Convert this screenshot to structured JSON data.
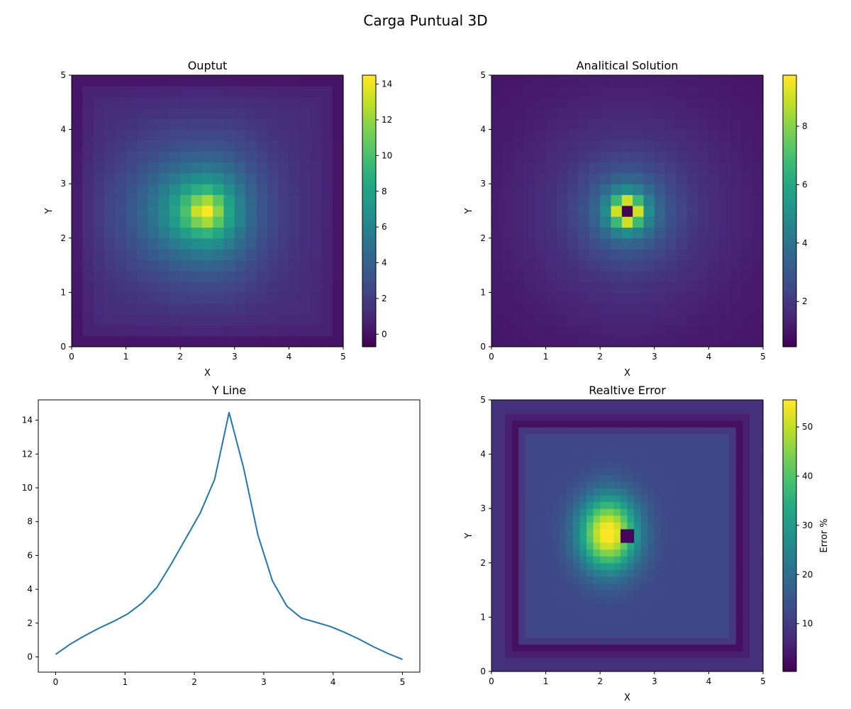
{
  "figure": {
    "title": "Carga Puntual 3D"
  },
  "colormap": {
    "name": "viridis",
    "stops": [
      "#440154",
      "#482475",
      "#414487",
      "#355f8d",
      "#2a788e",
      "#21918c",
      "#22a884",
      "#44bf70",
      "#7ad151",
      "#bddf26",
      "#fde725"
    ]
  },
  "line_color": "#1f77b4",
  "chart_data": [
    {
      "id": "output",
      "type": "heatmap",
      "title": "Ouptut",
      "xlabel": "X",
      "ylabel": "Y",
      "xlim": [
        0,
        5
      ],
      "ylim": [
        0,
        5
      ],
      "xticks": [
        "0",
        "1",
        "2",
        "3",
        "4",
        "5"
      ],
      "yticks": [
        "0",
        "1",
        "2",
        "3",
        "4",
        "5"
      ],
      "grid_size": 25,
      "field": "smooth_peak",
      "center": [
        2.5,
        2.5
      ],
      "vmin": -0.7,
      "vmax": 14.5,
      "peak": 14.4,
      "colorbar": {
        "label": "",
        "ticks": [
          "0",
          "2",
          "4",
          "6",
          "8",
          "10",
          "12",
          "14"
        ],
        "tick_values": [
          0,
          2,
          4,
          6,
          8,
          10,
          12,
          14
        ]
      }
    },
    {
      "id": "analytical",
      "type": "heatmap",
      "title": "Analitical Solution",
      "xlabel": "X",
      "ylabel": "Y",
      "xlim": [
        0,
        5
      ],
      "ylim": [
        0,
        5
      ],
      "xticks": [
        "0",
        "1",
        "2",
        "3",
        "4",
        "5"
      ],
      "yticks": [
        "0",
        "1",
        "2",
        "3",
        "4",
        "5"
      ],
      "grid_size": 25,
      "field": "point_charge",
      "center": [
        2.5,
        2.5
      ],
      "vmin": 0.45,
      "vmax": 9.75,
      "colorbar": {
        "label": "",
        "ticks": [
          "2",
          "4",
          "6",
          "8"
        ],
        "tick_values": [
          2,
          4,
          6,
          8
        ]
      }
    },
    {
      "id": "yline",
      "type": "line",
      "title": "Y Line",
      "xlabel": "",
      "ylabel": "",
      "xlim": [
        -0.25,
        5.25
      ],
      "ylim": [
        -0.9,
        15.2
      ],
      "xticks": [
        "0",
        "1",
        "2",
        "3",
        "4",
        "5"
      ],
      "yticks": [
        "0",
        "2",
        "4",
        "6",
        "8",
        "10",
        "12",
        "14"
      ],
      "series": [
        {
          "x": [
            0,
            0.2083,
            0.4167,
            0.625,
            0.8333,
            1.0417,
            1.25,
            1.4583,
            1.6667,
            1.875,
            2.0833,
            2.2917,
            2.5,
            2.7083,
            2.9167,
            3.125,
            3.3333,
            3.5417,
            3.75,
            3.9583,
            4.1667,
            4.375,
            4.5833,
            4.7917,
            5
          ],
          "y": [
            0.15,
            0.75,
            1.25,
            1.7,
            2.1,
            2.55,
            3.2,
            4.1,
            5.5,
            7.0,
            8.5,
            10.5,
            14.45,
            11.2,
            7.2,
            4.5,
            3.0,
            2.3,
            2.05,
            1.8,
            1.45,
            1.05,
            0.6,
            0.2,
            -0.15
          ]
        }
      ]
    },
    {
      "id": "error",
      "type": "heatmap",
      "title": "Realtive Error",
      "xlabel": "X",
      "ylabel": "Y",
      "xlim": [
        0,
        5
      ],
      "ylim": [
        0,
        5
      ],
      "xticks": [
        "0",
        "1",
        "2",
        "3",
        "4",
        "5"
      ],
      "yticks": [
        "0",
        "1",
        "2",
        "3",
        "4",
        "5"
      ],
      "grid_size": 40,
      "field": "relative_error",
      "center": [
        2.5,
        2.5
      ],
      "vmin": 0.3,
      "vmax": 55.5,
      "colorbar": {
        "label": "Error %",
        "ticks": [
          "10",
          "20",
          "30",
          "40",
          "50"
        ],
        "tick_values": [
          10,
          20,
          30,
          40,
          50
        ]
      }
    }
  ]
}
